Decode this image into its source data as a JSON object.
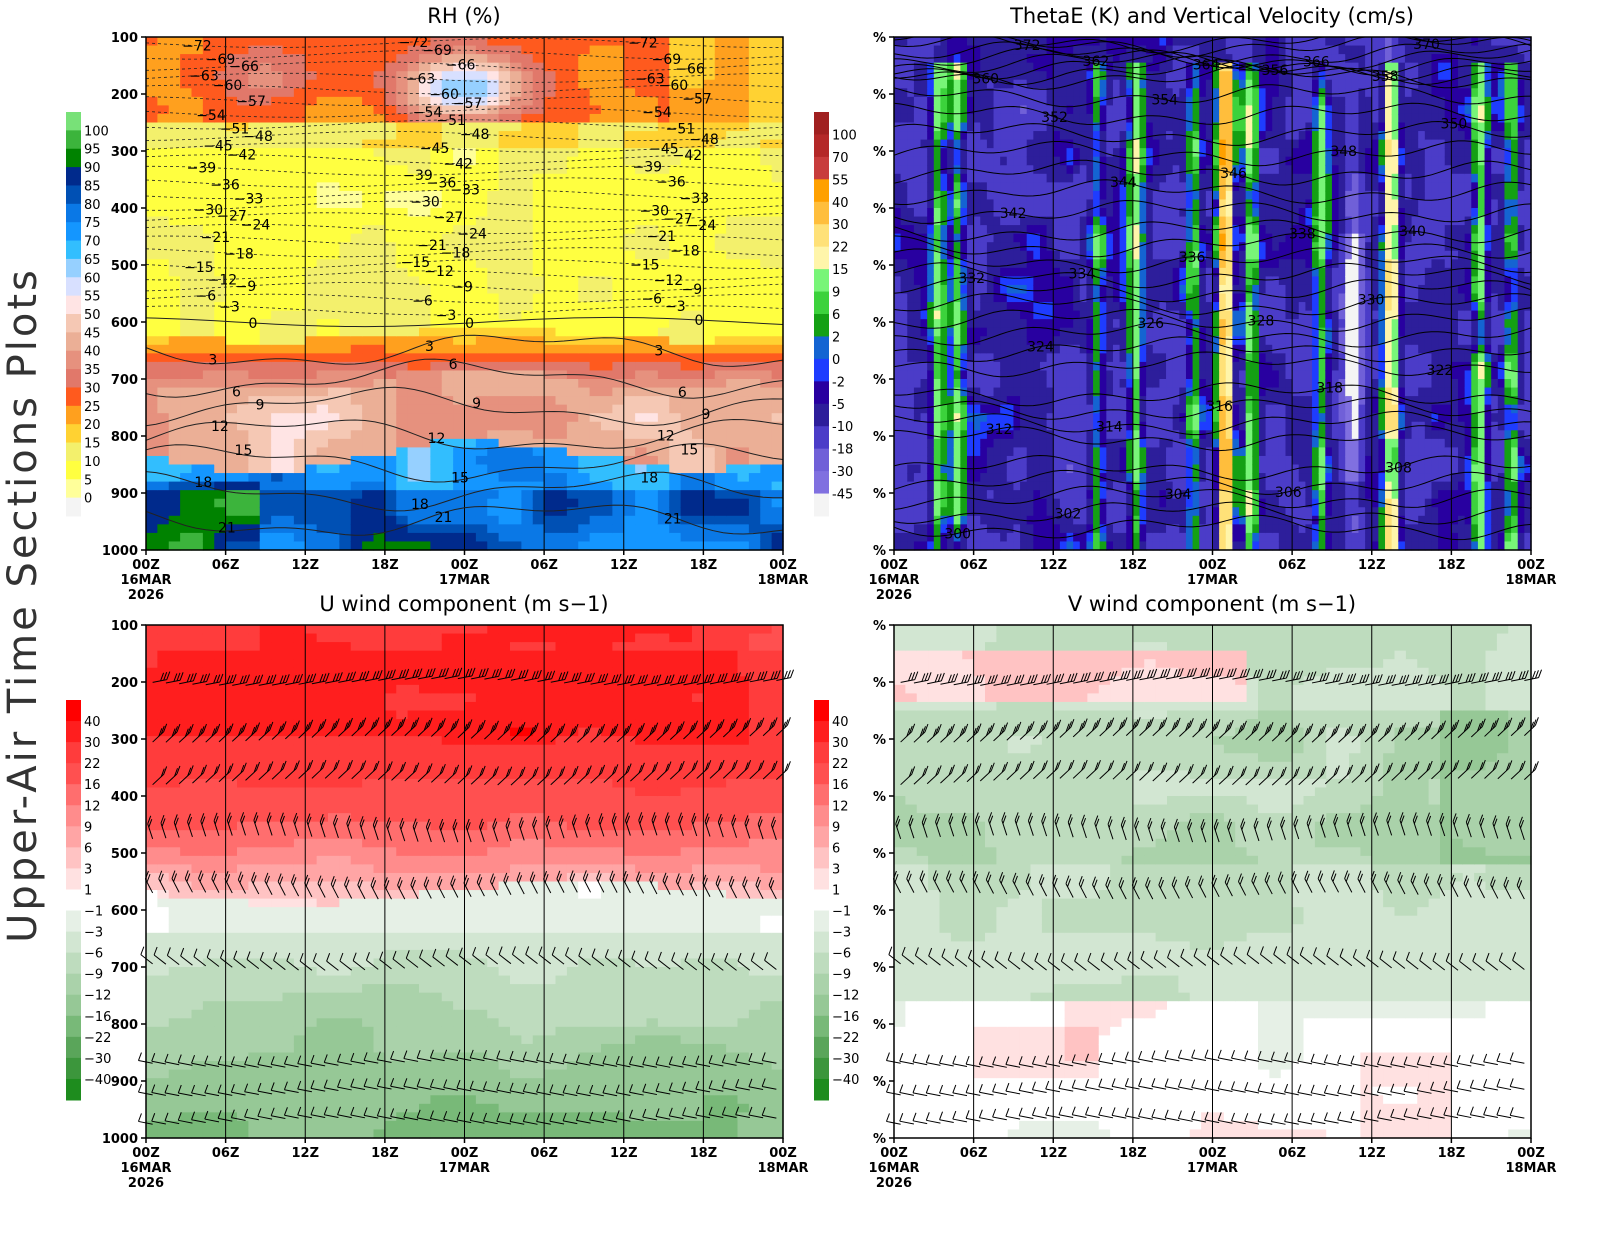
{
  "page_title": "Upper-Air Time Sections Plots",
  "x_ticks": [
    "00Z",
    "06Z",
    "12Z",
    "18Z",
    "00Z",
    "06Z",
    "12Z",
    "18Z",
    "00Z"
  ],
  "x_dates": [
    {
      "index": 0,
      "label": "16MAR"
    },
    {
      "index": 4,
      "label": "17MAR"
    },
    {
      "index": 8,
      "label": "18MAR"
    }
  ],
  "x_year": "2026",
  "y_ticks": [
    100,
    200,
    300,
    400,
    500,
    600,
    700,
    800,
    900,
    1000
  ],
  "y_percent_label": "%",
  "chart_data": [
    {
      "type": "heatmap",
      "title": "RH (%)",
      "ylim": [
        1000,
        100
      ],
      "xlim": [
        "16MAR2026 00Z",
        "18MAR2026 00Z"
      ],
      "colorbar": {
        "labels": [
          "100",
          "95",
          "90",
          "85",
          "80",
          "75",
          "70",
          "65",
          "60",
          "55",
          "50",
          "45",
          "40",
          "35",
          "30",
          "25",
          "20",
          "15",
          "10",
          "5",
          "0"
        ],
        "levels": [
          0,
          5,
          10,
          15,
          20,
          25,
          30,
          35,
          40,
          45,
          50,
          55,
          60,
          65,
          70,
          75,
          80,
          85,
          90,
          95,
          100
        ],
        "colors": [
          "#f4f4f4",
          "#ffff9a",
          "#ffff40",
          "#f3f06c",
          "#ffd232",
          "#ffa01e",
          "#ff5a1e",
          "#e1786a",
          "#e6917e",
          "#ebaf96",
          "#f5c8b4",
          "#ffe4e4",
          "#d8e0ff",
          "#96d0ff",
          "#32befe",
          "#1496ff",
          "#0a78e6",
          "#0050b4",
          "#002a8c",
          "#008200",
          "#3cb43c",
          "#78e178"
        ]
      },
      "contour_overlay": {
        "variable": "temperature",
        "levels": [
          -72,
          -69,
          -66,
          -63,
          -60,
          -57,
          -54,
          -51,
          -48,
          -45,
          -42,
          -39,
          -36,
          -33,
          -30,
          -27,
          -24,
          -21,
          -18,
          -15,
          -12,
          -9,
          -6,
          -3,
          0,
          3,
          6,
          9,
          12,
          15,
          18,
          21
        ]
      }
    },
    {
      "type": "heatmap",
      "title": "ThetaE (K) and Vertical Velocity (cm/s)",
      "ylim": [
        1000,
        100
      ],
      "colorbar": {
        "labels": [
          "100",
          "70",
          "55",
          "40",
          "30",
          "22",
          "15",
          "9",
          "6",
          "2",
          "0",
          "-2",
          "-5",
          "-10",
          "-18",
          "-30",
          "-45"
        ],
        "levels": [
          -45,
          -30,
          -18,
          -10,
          -5,
          -2,
          0,
          2,
          6,
          9,
          15,
          22,
          30,
          40,
          55,
          70,
          100
        ],
        "colors": [
          "#f4f4f4",
          "#8070e0",
          "#7060d8",
          "#4b3cc8",
          "#2d1e9b",
          "#2800a0",
          "#1e3cff",
          "#1464d2",
          "#14a014",
          "#3cd23c",
          "#78f578",
          "#fff5aa",
          "#ffe178",
          "#ffbe3c",
          "#ffa000",
          "#c83c3c",
          "#b42828",
          "#a02020"
        ]
      },
      "contour_overlay": {
        "variable": "thetaE",
        "levels": [
          300,
          302,
          304,
          306,
          308,
          312,
          314,
          316,
          318,
          322,
          324,
          326,
          328,
          330,
          332,
          334,
          336,
          338,
          340,
          342,
          344,
          346,
          348,
          350,
          352,
          354,
          356,
          358,
          360,
          362,
          364,
          366,
          370,
          372
        ]
      }
    },
    {
      "type": "heatmap",
      "title": "U wind component (m s−1)",
      "ylim": [
        1000,
        100
      ],
      "colorbar": {
        "labels": [
          "40",
          "30",
          "22",
          "16",
          "12",
          "9",
          "6",
          "3",
          "1",
          "−1",
          "−3",
          "−6",
          "−9",
          "−12",
          "−16",
          "−22",
          "−30",
          "−40"
        ],
        "levels": [
          -40,
          -30,
          -22,
          -16,
          -12,
          -9,
          -6,
          -3,
          -1,
          1,
          3,
          6,
          9,
          12,
          16,
          22,
          30,
          40
        ],
        "colors": [
          "#1e8c1e",
          "#3c963c",
          "#5aa55a",
          "#78b978",
          "#96c896",
          "#aad2aa",
          "#bedcbe",
          "#d2e6d2",
          "#e6f0e6",
          "#ffffff",
          "#ffe1e1",
          "#ffc3c3",
          "#ffa5a5",
          "#ff8c8c",
          "#ff6e6e",
          "#ff5050",
          "#ff3c3c",
          "#ff1e1e",
          "#ff0000"
        ]
      },
      "wind_barbs": true
    },
    {
      "type": "heatmap",
      "title": "V wind component (m s−1)",
      "ylim": [
        1000,
        100
      ],
      "colorbar": {
        "labels": [
          "40",
          "30",
          "22",
          "16",
          "12",
          "9",
          "6",
          "3",
          "1",
          "−1",
          "−3",
          "−6",
          "−9",
          "−12",
          "−16",
          "−22",
          "−30",
          "−40"
        ],
        "levels": [
          -40,
          -30,
          -22,
          -16,
          -12,
          -9,
          -6,
          -3,
          -1,
          1,
          3,
          6,
          9,
          12,
          16,
          22,
          30,
          40
        ],
        "colors": [
          "#1e8c1e",
          "#3c963c",
          "#5aa55a",
          "#78b978",
          "#96c896",
          "#aad2aa",
          "#bedcbe",
          "#d2e6d2",
          "#e6f0e6",
          "#ffffff",
          "#ffe1e1",
          "#ffc3c3",
          "#ffa5a5",
          "#ff8c8c",
          "#ff6e6e",
          "#ff5050",
          "#ff3c3c",
          "#ff1e1e",
          "#ff0000"
        ]
      },
      "wind_barbs": true
    }
  ]
}
